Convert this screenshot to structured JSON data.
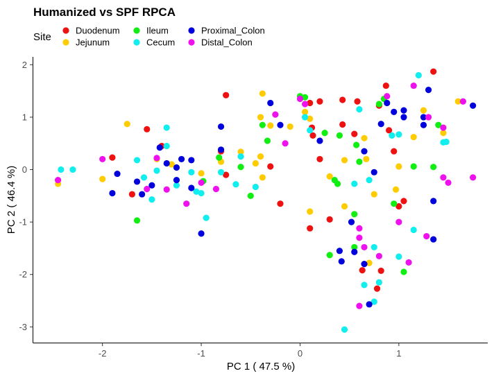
{
  "chart_data": {
    "type": "scatter",
    "title": "Humanized vs SPF RPCA",
    "xlabel": "PC 1 ( 47.5 %)",
    "ylabel": "PC 2 ( 46.4 %)",
    "xlim": [
      -2.7,
      1.9
    ],
    "ylim": [
      -3.3,
      2.15
    ],
    "x_ticks": [
      -2,
      -1,
      0,
      1
    ],
    "y_ticks": [
      -3,
      -2,
      -1,
      0,
      1,
      2
    ],
    "x_tick_labels": [
      "-2",
      "-1",
      "0",
      "1"
    ],
    "y_tick_labels": [
      "-3",
      "-2",
      "-1",
      "0",
      "1",
      "2"
    ],
    "grid": false,
    "legend": {
      "title": "Site",
      "position": "top-left",
      "entries": [
        {
          "name": "Duodenum",
          "color": "#ee1111"
        },
        {
          "name": "Jejunum",
          "color": "#ffcc00"
        },
        {
          "name": "Ileum",
          "color": "#11ee11"
        },
        {
          "name": "Cecum",
          "color": "#11eeee"
        },
        {
          "name": "Proximal_Colon",
          "color": "#0000dd"
        },
        {
          "name": "Distal_Colon",
          "color": "#ee11ee"
        }
      ]
    },
    "series": [
      {
        "name": "Duodenum",
        "color": "#ee1111",
        "points": [
          [
            -1.9,
            0.23
          ],
          [
            -1.55,
            0.77
          ],
          [
            -1.4,
            0.45
          ],
          [
            -1.7,
            -0.47
          ],
          [
            -0.75,
            1.42
          ],
          [
            -0.8,
            0.35
          ],
          [
            -0.75,
            -0.1
          ],
          [
            -0.3,
            0.06
          ],
          [
            -0.2,
            -0.65
          ],
          [
            0.1,
            1.27
          ],
          [
            0.12,
            0.8
          ],
          [
            0.13,
            0.65
          ],
          [
            0.2,
            1.3
          ],
          [
            0.2,
            0.2
          ],
          [
            0.43,
            1.33
          ],
          [
            0.43,
            0.86
          ],
          [
            0.55,
            0.68
          ],
          [
            0.58,
            1.3
          ],
          [
            0.8,
            1.22
          ],
          [
            0.87,
            1.6
          ],
          [
            0.9,
            0.75
          ],
          [
            0.95,
            0.35
          ],
          [
            1.0,
            -0.7
          ],
          [
            1.05,
            -0.6
          ],
          [
            0.1,
            -1.12
          ],
          [
            0.3,
            -0.95
          ],
          [
            0.63,
            -1.92
          ],
          [
            0.78,
            -2.27
          ],
          [
            0.82,
            -1.93
          ],
          [
            1.35,
            1.87
          ]
        ]
      },
      {
        "name": "Jejunum",
        "color": "#ffcc00",
        "points": [
          [
            -2.45,
            -0.27
          ],
          [
            -2.0,
            -0.18
          ],
          [
            -1.75,
            0.87
          ],
          [
            -1.45,
            0.2
          ],
          [
            -1.3,
            0.1
          ],
          [
            -1.0,
            -0.07
          ],
          [
            -0.8,
            0.15
          ],
          [
            -0.6,
            0.34
          ],
          [
            -0.4,
            1.0
          ],
          [
            -0.38,
            1.45
          ],
          [
            -0.3,
            0.84
          ],
          [
            -0.4,
            0.25
          ],
          [
            -0.45,
            0.12
          ],
          [
            -0.38,
            -0.15
          ],
          [
            0.05,
            1.1
          ],
          [
            -0.1,
            0.82
          ],
          [
            0.1,
            0.97
          ],
          [
            0.1,
            -0.8
          ],
          [
            0.3,
            -0.13
          ],
          [
            0.45,
            0.18
          ],
          [
            0.45,
            -0.7
          ],
          [
            0.65,
            0.6
          ],
          [
            0.67,
            0.2
          ],
          [
            0.75,
            -0.47
          ],
          [
            0.7,
            -1.78
          ],
          [
            0.97,
            -0.38
          ],
          [
            1.0,
            0.06
          ],
          [
            1.15,
            0.62
          ],
          [
            1.25,
            1.13
          ],
          [
            1.45,
            0.7
          ],
          [
            1.6,
            1.3
          ]
        ]
      },
      {
        "name": "Ileum",
        "color": "#11ee11",
        "points": [
          [
            -1.65,
            -0.97
          ],
          [
            -0.98,
            -0.22
          ],
          [
            -0.82,
            0.23
          ],
          [
            -0.6,
            0.05
          ],
          [
            -0.5,
            -0.5
          ],
          [
            -0.38,
            0.85
          ],
          [
            -0.33,
            0.55
          ],
          [
            0.0,
            1.4
          ],
          [
            0.05,
            1.38
          ],
          [
            0.25,
            0.7
          ],
          [
            0.35,
            -0.2
          ],
          [
            0.38,
            -0.27
          ],
          [
            0.4,
            0.65
          ],
          [
            0.57,
            0.47
          ],
          [
            0.6,
            0.15
          ],
          [
            0.55,
            -0.85
          ],
          [
            0.55,
            -1.48
          ],
          [
            0.8,
            1.25
          ],
          [
            0.85,
            1.35
          ],
          [
            0.95,
            -0.65
          ],
          [
            1.05,
            -1.95
          ],
          [
            1.15,
            0.06
          ],
          [
            1.35,
            0.05
          ],
          [
            1.4,
            0.85
          ],
          [
            0.3,
            -1.63
          ]
        ]
      },
      {
        "name": "Cecum",
        "color": "#11eeee",
        "points": [
          [
            -2.42,
            0.0
          ],
          [
            -2.3,
            0.0
          ],
          [
            -1.65,
            0.18
          ],
          [
            -1.58,
            -0.15
          ],
          [
            -1.45,
            -0.02
          ],
          [
            -1.5,
            -0.57
          ],
          [
            -1.35,
            0.8
          ],
          [
            -1.35,
            0.45
          ],
          [
            -1.25,
            -0.3
          ],
          [
            -1.1,
            -0.05
          ],
          [
            -1.05,
            -0.42
          ],
          [
            -1.0,
            -0.45
          ],
          [
            -0.95,
            -0.92
          ],
          [
            -0.8,
            -0.05
          ],
          [
            -0.65,
            -0.28
          ],
          [
            -0.6,
            0.25
          ],
          [
            -0.45,
            -0.33
          ],
          [
            0.1,
            0.75
          ],
          [
            0.05,
            1.0
          ],
          [
            0.55,
            -0.27
          ],
          [
            0.6,
            1.15
          ],
          [
            0.7,
            -0.2
          ],
          [
            0.75,
            -1.48
          ],
          [
            0.8,
            -2.15
          ],
          [
            0.93,
            0.65
          ],
          [
            1.0,
            0.67
          ],
          [
            1.0,
            -1.66
          ],
          [
            1.15,
            -1.15
          ],
          [
            1.2,
            1.8
          ],
          [
            1.45,
            0.52
          ],
          [
            1.48,
            0.53
          ],
          [
            0.45,
            -3.05
          ],
          [
            0.65,
            -2.2
          ],
          [
            0.75,
            -2.52
          ]
        ]
      },
      {
        "name": "Proximal_Colon",
        "color": "#0000dd",
        "points": [
          [
            -1.85,
            -0.08
          ],
          [
            -1.9,
            -0.45
          ],
          [
            -1.65,
            -0.23
          ],
          [
            -1.6,
            -0.47
          ],
          [
            -1.5,
            -0.3
          ],
          [
            -1.42,
            0.42
          ],
          [
            -1.35,
            0.12
          ],
          [
            -1.25,
            0.04
          ],
          [
            -1.2,
            0.2
          ],
          [
            -1.25,
            -0.2
          ],
          [
            -1.1,
            0.18
          ],
          [
            -1.1,
            -0.35
          ],
          [
            -1.0,
            -1.22
          ],
          [
            -0.8,
            0.82
          ],
          [
            -0.8,
            0.38
          ],
          [
            -0.3,
            1.27
          ],
          [
            -0.2,
            0.85
          ],
          [
            0.2,
            0.55
          ],
          [
            0.4,
            -1.55
          ],
          [
            0.42,
            -1.75
          ],
          [
            0.52,
            -1.0
          ],
          [
            0.65,
            0.35
          ],
          [
            0.75,
            -0.05
          ],
          [
            0.82,
            0.87
          ],
          [
            0.88,
            1.27
          ],
          [
            0.95,
            1.1
          ],
          [
            1.05,
            1.13
          ],
          [
            1.05,
            1.0
          ],
          [
            1.25,
            0.85
          ],
          [
            1.35,
            -0.6
          ],
          [
            1.35,
            -1.33
          ],
          [
            1.3,
            1.52
          ],
          [
            1.75,
            1.22
          ],
          [
            0.65,
            -1.8
          ],
          [
            0.7,
            -2.57
          ],
          [
            0.55,
            -1.57
          ],
          [
            1.25,
            1.0
          ]
        ]
      },
      {
        "name": "Distal_Colon",
        "color": "#ee11ee",
        "points": [
          [
            -2.45,
            -0.2
          ],
          [
            -2.0,
            0.2
          ],
          [
            -1.55,
            -0.37
          ],
          [
            -1.45,
            0.22
          ],
          [
            -1.35,
            -0.38
          ],
          [
            -1.15,
            -0.65
          ],
          [
            -1.0,
            -0.25
          ],
          [
            -0.85,
            -0.37
          ],
          [
            -0.15,
            0.5
          ],
          [
            -0.25,
            1.05
          ],
          [
            0.0,
            1.35
          ],
          [
            0.05,
            1.25
          ],
          [
            0.6,
            -1.12
          ],
          [
            0.6,
            -1.3
          ],
          [
            0.65,
            -1.48
          ],
          [
            0.8,
            -1.65
          ],
          [
            0.88,
            1.4
          ],
          [
            1.0,
            -1.0
          ],
          [
            1.1,
            -1.77
          ],
          [
            1.3,
            1.0
          ],
          [
            1.15,
            1.6
          ],
          [
            1.45,
            0.8
          ],
          [
            1.45,
            -0.15
          ],
          [
            1.5,
            -0.25
          ],
          [
            1.65,
            1.3
          ],
          [
            1.28,
            -1.27
          ],
          [
            0.6,
            -2.6
          ],
          [
            1.75,
            -0.15
          ]
        ]
      }
    ]
  }
}
